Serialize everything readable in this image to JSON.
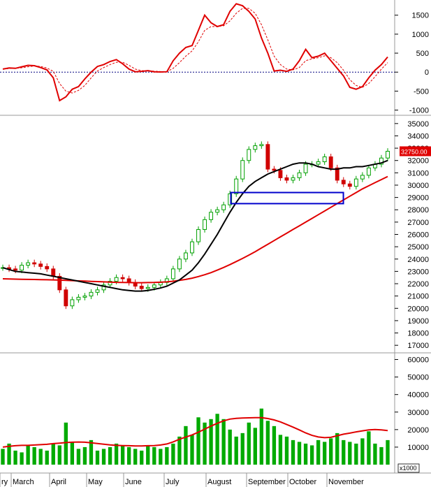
{
  "chart_data": [
    {
      "type": "line",
      "panel": "macd",
      "yticks": [
        -1000,
        -500,
        0,
        500,
        1000,
        1500
      ],
      "ylim": [
        -1100,
        1900
      ],
      "zero_line": 0,
      "series": [
        {
          "values": [
            80,
            110,
            100,
            140,
            180,
            170,
            120,
            60,
            -150,
            -750,
            -650,
            -450,
            -380,
            -180,
            0,
            150,
            200,
            280,
            330,
            220,
            80,
            10,
            20,
            40,
            10,
            5,
            10,
            300,
            500,
            650,
            700,
            1100,
            1500,
            1300,
            1200,
            1250,
            1600,
            1800,
            1750,
            1600,
            1400,
            900,
            500,
            30,
            50,
            20,
            80,
            300,
            600,
            380,
            420,
            500,
            300,
            100,
            -100,
            -400,
            -450,
            -380,
            -150,
            50,
            200,
            400
          ]
        },
        {
          "values": [
            80,
            95,
            105,
            115,
            140,
            160,
            150,
            110,
            20,
            -300,
            -500,
            -550,
            -480,
            -350,
            -150,
            30,
            120,
            200,
            260,
            260,
            180,
            80,
            40,
            30,
            25,
            15,
            10,
            100,
            250,
            420,
            560,
            800,
            1100,
            1200,
            1200,
            1220,
            1350,
            1550,
            1680,
            1680,
            1550,
            1250,
            850,
            420,
            200,
            80,
            60,
            120,
            300,
            350,
            380,
            430,
            380,
            250,
            50,
            -200,
            -350,
            -400,
            -300,
            -120,
            80,
            250
          ]
        }
      ]
    },
    {
      "type": "candlestick",
      "panel": "price",
      "yticks": [
        17000,
        18000,
        19000,
        20000,
        21000,
        22000,
        23000,
        24000,
        25000,
        26000,
        27000,
        28000,
        29000,
        30000,
        31000,
        32000,
        33000,
        34000,
        35000
      ],
      "ylim": [
        16500,
        35500
      ],
      "last_price_label": "32750.00",
      "highlight_box": {
        "x_start": 0.585,
        "x_end": 0.87,
        "y_low": 28500,
        "y_high": 29400
      },
      "close": [
        23300,
        23200,
        23100,
        23500,
        23700,
        23600,
        23400,
        23200,
        22600,
        21500,
        20200,
        20700,
        20900,
        21000,
        21300,
        21500,
        21900,
        22200,
        22500,
        22400,
        22100,
        21800,
        21600,
        21700,
        21900,
        22100,
        22400,
        23200,
        24000,
        24500,
        25400,
        26400,
        27200,
        27800,
        28000,
        28400,
        29300,
        30500,
        32000,
        32900,
        33200,
        33300,
        31300,
        31200,
        30600,
        30400,
        30600,
        31000,
        31700,
        31700,
        31900,
        32300,
        31400,
        30400,
        30100,
        29900,
        30500,
        30800,
        31400,
        31700,
        32200,
        32750
      ],
      "ma_black": [
        23300,
        23150,
        23000,
        22950,
        22900,
        22850,
        22800,
        22700,
        22600,
        22500,
        22400,
        22300,
        22200,
        22100,
        22000,
        21900,
        21800,
        21700,
        21600,
        21500,
        21450,
        21400,
        21400,
        21450,
        21550,
        21650,
        21800,
        22050,
        22300,
        22700,
        23100,
        23700,
        24400,
        25200,
        26000,
        26900,
        27800,
        28600,
        29300,
        29900,
        30300,
        30600,
        30900,
        31100,
        31300,
        31500,
        31700,
        31800,
        31800,
        31700,
        31500,
        31400,
        31300,
        31300,
        31400,
        31400,
        31500,
        31500,
        31600,
        31700,
        31800,
        32000
      ]
    },
    {
      "type": "line",
      "panel": "price-ma",
      "ma_red": [
        22400,
        22380,
        22370,
        22360,
        22350,
        22340,
        22330,
        22320,
        22310,
        22290,
        22270,
        22250,
        22230,
        22210,
        22190,
        22170,
        22150,
        22130,
        22110,
        22100,
        22090,
        22080,
        22080,
        22090,
        22100,
        22120,
        22150,
        22200,
        22270,
        22350,
        22450,
        22580,
        22730,
        22900,
        23100,
        23320,
        23550,
        23800,
        24050,
        24320,
        24600,
        24900,
        25200,
        25500,
        25800,
        26100,
        26400,
        26700,
        27000,
        27300,
        27600,
        27900,
        28200,
        28500,
        28800,
        29100,
        29400,
        29700,
        29950,
        30200,
        30450,
        30700
      ]
    },
    {
      "type": "bar",
      "panel": "volume",
      "ylabel": "x1000",
      "yticks": [
        10000,
        20000,
        30000,
        40000,
        50000,
        60000
      ],
      "ylim": [
        0,
        63000
      ],
      "values": [
        9000,
        12000,
        8000,
        7000,
        11000,
        10000,
        9000,
        8000,
        12000,
        11000,
        24000,
        13000,
        9000,
        10000,
        14000,
        8000,
        9000,
        10000,
        12000,
        11000,
        10000,
        9000,
        8000,
        11000,
        10000,
        9000,
        10000,
        12000,
        16000,
        22000,
        17000,
        27000,
        24000,
        26000,
        29000,
        26000,
        20000,
        16000,
        18000,
        24000,
        21000,
        32000,
        25000,
        22000,
        17000,
        16000,
        14000,
        13000,
        12000,
        11000,
        14000,
        13000,
        15000,
        18000,
        14000,
        13000,
        12000,
        15000,
        19000,
        12000,
        10000,
        14000
      ],
      "ma_red": [
        10000,
        10500,
        10800,
        11000,
        11000,
        11200,
        11400,
        11600,
        12000,
        12300,
        12600,
        12800,
        12900,
        12800,
        12500,
        12100,
        11700,
        11300,
        11000,
        10900,
        10800,
        10700,
        10700,
        10800,
        10900,
        11200,
        11800,
        13000,
        14500,
        15700,
        17000,
        18500,
        20300,
        22000,
        23600,
        25000,
        26000,
        26400,
        26600,
        26700,
        26800,
        26800,
        26300,
        25500,
        24400,
        22900,
        21400,
        19800,
        18100,
        16700,
        15800,
        15400,
        15600,
        16500,
        17400,
        18000,
        18700,
        19300,
        19800,
        20000,
        19800,
        19400
      ]
    }
  ],
  "month_labels": [
    "ry",
    "March",
    "April",
    "May",
    "June",
    "July",
    "August",
    "September",
    "October",
    "November"
  ],
  "colors": {
    "up": "#00a000",
    "down": "#d00000",
    "macd": "#e00000",
    "signal": "#e00000",
    "ma_black": "#000000",
    "ma_red": "#e00000",
    "volume_bar": "#00aa00",
    "highlight_box": "#0000cc",
    "price_label_bg": "#e00000"
  }
}
